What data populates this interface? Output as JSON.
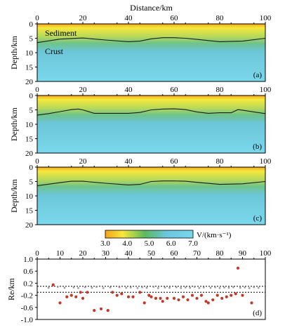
{
  "chart_data": [
    {
      "type": "heatmap",
      "panel_label": "(a)",
      "xlabel": "Distance/km",
      "ylabel": "Depth/km",
      "xlim": [
        0,
        100
      ],
      "ylim": [
        0,
        20
      ],
      "y_inverted": true,
      "x_ticks": [
        "0",
        "20",
        "40",
        "60",
        "80",
        "100"
      ],
      "y_ticks": [
        "0",
        "5",
        "10",
        "15",
        "20"
      ],
      "annotations": [
        "Sediment",
        "Crust"
      ],
      "interface": {
        "x": [
          0,
          10,
          20,
          30,
          40,
          45,
          50,
          55,
          60,
          65,
          70,
          80,
          90,
          100
        ],
        "depth": [
          6.5,
          5.3,
          4.9,
          5.6,
          6.2,
          6.0,
          5.2,
          4.8,
          4.8,
          5.0,
          5.4,
          6.2,
          6.0,
          5.0
        ]
      }
    },
    {
      "type": "heatmap",
      "panel_label": "(b)",
      "xlabel": "",
      "ylabel": "Depth/km",
      "xlim": [
        0,
        100
      ],
      "ylim": [
        0,
        20
      ],
      "y_inverted": true,
      "x_ticks": [
        "0",
        "20",
        "40",
        "60",
        "80",
        "100"
      ],
      "y_ticks": [
        "0",
        "5",
        "10",
        "15",
        "20"
      ],
      "interface": {
        "x": [
          0,
          5,
          10,
          15,
          18,
          20,
          25,
          30,
          40,
          45,
          50,
          55,
          60,
          65,
          70,
          75,
          80,
          85,
          88,
          90,
          95,
          100
        ],
        "depth": [
          6.8,
          6.3,
          5.6,
          4.9,
          4.7,
          5.0,
          6.2,
          6.2,
          6.2,
          5.9,
          5.0,
          4.7,
          4.6,
          4.9,
          5.7,
          6.2,
          6.0,
          6.0,
          4.9,
          5.1,
          5.7,
          6.3
        ]
      }
    },
    {
      "type": "heatmap",
      "panel_label": "(c)",
      "xlabel": "",
      "ylabel": "Depth/km",
      "xlim": [
        0,
        100
      ],
      "ylim": [
        0,
        20
      ],
      "y_inverted": true,
      "x_ticks": [
        "0",
        "20",
        "40",
        "60",
        "80",
        "100"
      ],
      "y_ticks": [
        "0",
        "5",
        "10",
        "15",
        "20"
      ],
      "interface": {
        "x": [
          0,
          10,
          15,
          20,
          30,
          40,
          45,
          50,
          55,
          60,
          65,
          70,
          80,
          90,
          100
        ],
        "depth": [
          6.5,
          5.4,
          4.9,
          4.9,
          5.6,
          6.2,
          6.0,
          5.0,
          4.8,
          4.8,
          4.9,
          5.3,
          6.0,
          5.8,
          5.0
        ]
      }
    },
    {
      "type": "colorbar",
      "label": "V/(km·s⁻¹)",
      "ticks": [
        "3.0",
        "4.0",
        "5.0",
        "6.0",
        "7.0"
      ],
      "range": [
        3.0,
        7.0
      ],
      "colors": [
        "#f3a41a",
        "#f6e93c",
        "#5cb85c",
        "#6bc6e0",
        "#79d6ea"
      ]
    },
    {
      "type": "scatter",
      "panel_label": "(d)",
      "xlabel": "",
      "ylabel": "Re/km",
      "xlim": [
        0,
        100
      ],
      "ylim": [
        -1.0,
        1.0
      ],
      "x_ticks": [
        "0",
        "10",
        "20",
        "30",
        "40",
        "50",
        "60",
        "70",
        "80",
        "90",
        "100"
      ],
      "y_ticks": [
        "1.0",
        "0.6",
        "0.2",
        "-0.2",
        "-0.6",
        "-1.0"
      ],
      "reference_lines": [
        0.1,
        -0.1
      ],
      "series": [
        {
          "x": [
            7,
            10,
            13,
            15,
            17,
            19,
            20,
            22,
            25,
            28,
            31,
            33,
            35,
            37,
            40,
            42,
            45,
            47,
            49,
            50,
            52,
            54,
            55,
            57,
            60,
            62,
            64,
            66,
            68,
            70,
            72,
            74,
            75,
            77,
            79,
            81,
            83,
            85,
            87,
            88,
            90,
            94
          ],
          "y": [
            0.15,
            -0.45,
            -0.25,
            -0.2,
            -0.25,
            -0.1,
            -0.3,
            -0.1,
            -0.7,
            -0.65,
            -0.7,
            -0.1,
            -0.2,
            -0.15,
            -0.25,
            -0.25,
            -0.1,
            -0.45,
            -0.2,
            -0.25,
            -0.3,
            -0.3,
            -0.4,
            -0.3,
            -0.3,
            -0.35,
            -0.25,
            -0.35,
            -0.2,
            -0.3,
            -0.2,
            -0.4,
            -0.45,
            -0.35,
            -0.2,
            -0.3,
            -0.25,
            -0.2,
            -0.15,
            0.7,
            -0.2,
            -0.45
          ]
        },
        {
          "x": [
            5,
            9,
            12,
            16,
            18,
            21,
            24,
            26,
            29,
            32,
            36,
            39,
            41,
            44,
            46,
            48,
            51,
            53,
            56,
            58,
            61,
            63,
            65,
            67,
            69,
            71,
            73,
            76,
            78,
            80,
            82,
            84,
            86,
            89,
            91,
            93,
            95,
            97
          ],
          "y": [
            0.05,
            0.08,
            0.05,
            0.06,
            0.04,
            0.07,
            0.05,
            0.08,
            0.04,
            0.06,
            0.07,
            0.05,
            0.06,
            0.04,
            0.07,
            0.05,
            0.08,
            0.04,
            0.06,
            0.05,
            0.07,
            0.04,
            0.06,
            0.05,
            0.08,
            0.04,
            0.06,
            0.05,
            0.07,
            0.04,
            0.06,
            0.05,
            0.07,
            0.05,
            0.06,
            0.04,
            0.07,
            0.05
          ]
        }
      ]
    }
  ],
  "colors": {
    "sediment_top": "#f3a41a",
    "sediment_mid": "#f6e93c",
    "crust_green": "#5cb85c",
    "crust_blue": "#7ad6ea",
    "residual_dot": "#c0392b",
    "small_dot": "#9a9a9a"
  }
}
